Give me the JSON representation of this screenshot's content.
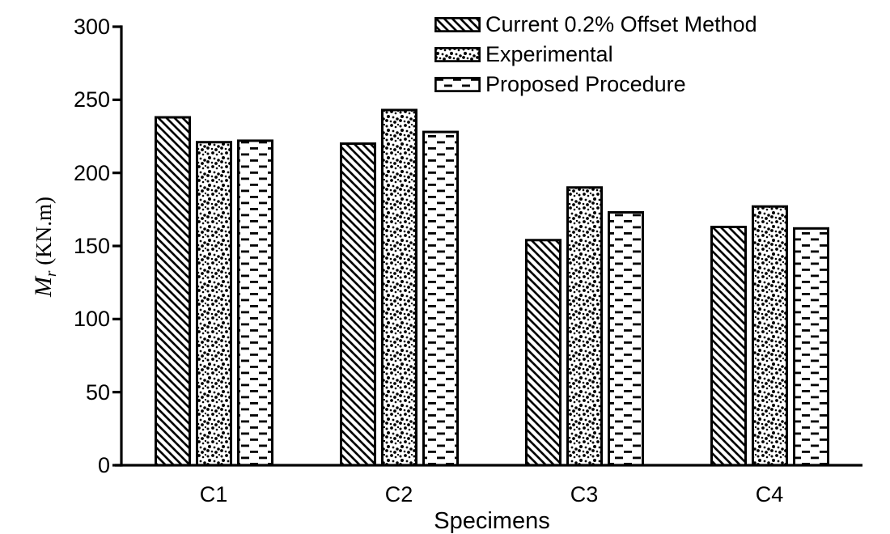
{
  "chart_data": {
    "type": "bar",
    "title": "",
    "xlabel": "Specimens",
    "ylabel": "M_r (KN.m)",
    "ylabel_parts": {
      "main": "M",
      "sub": "r",
      "unit": "(KN.m)"
    },
    "categories": [
      "C1",
      "C2",
      "C3",
      "C4"
    ],
    "series": [
      {
        "name": "Current 0.2% Offset Method",
        "pattern": "diagonal-hatch",
        "values": [
          238,
          220,
          154,
          163
        ]
      },
      {
        "name": "Experimental",
        "pattern": "dots",
        "values": [
          221,
          243,
          190,
          177
        ]
      },
      {
        "name": "Proposed Procedure",
        "pattern": "horizontal-dashes",
        "values": [
          222,
          228,
          173,
          162
        ]
      }
    ],
    "ylim": [
      0,
      300
    ],
    "yticks": [
      "0",
      "50",
      "100",
      "150",
      "200",
      "250",
      "300"
    ],
    "grid": false,
    "legend_position": "top-center",
    "colors": {
      "foreground": "#000000",
      "background": "#ffffff"
    }
  }
}
